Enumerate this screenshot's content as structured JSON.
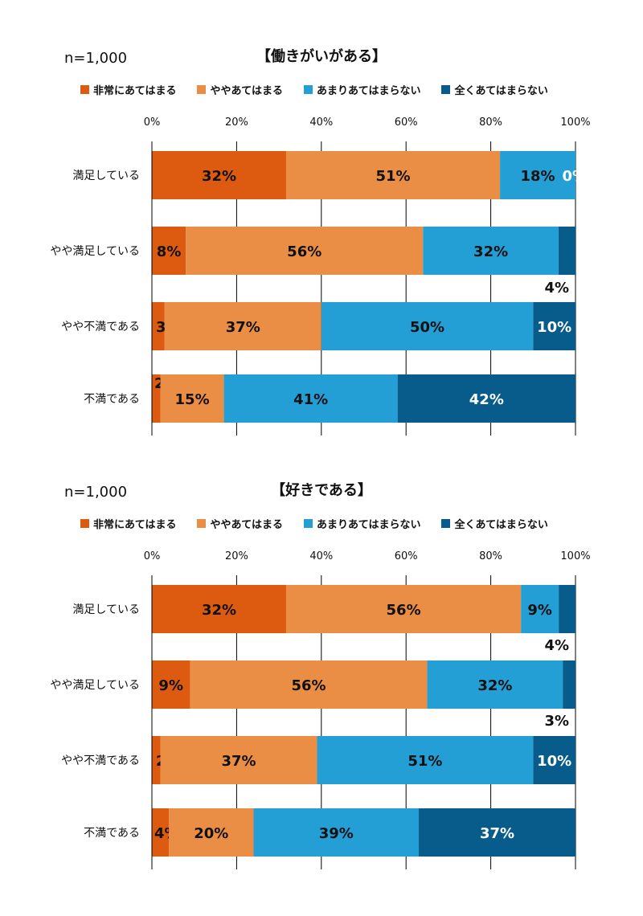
{
  "legend": [
    "非常にあてはまる",
    "ややあてはまる",
    "あまりあてはまらない",
    "全くあてはまらない"
  ],
  "colors": [
    "#dd5a11",
    "#ea8d45",
    "#239fd5",
    "#075c8c"
  ],
  "chart_data": [
    {
      "type": "bar",
      "orientation": "horizontal",
      "stacked": "100%",
      "title": "【働きがいがある】",
      "note": "n=1,000",
      "categories": [
        "満足している",
        "やや満足している",
        "やや不満である",
        "不満である"
      ],
      "series": [
        {
          "name": "非常にあてはまる",
          "values": [
            32,
            8,
            3,
            2
          ]
        },
        {
          "name": "ややあてはまる",
          "values": [
            51,
            56,
            37,
            15
          ]
        },
        {
          "name": "あまりあてはまらない",
          "values": [
            18,
            32,
            50,
            41
          ]
        },
        {
          "name": "全くあてはまらない",
          "values": [
            0,
            4,
            10,
            42
          ]
        }
      ],
      "xticks": [
        "0%",
        "20%",
        "40%",
        "60%",
        "80%",
        "100%"
      ],
      "xlim": [
        0,
        100
      ],
      "legend_position": "top"
    },
    {
      "type": "bar",
      "orientation": "horizontal",
      "stacked": "100%",
      "title": "【好きである】",
      "note": "n=1,000",
      "categories": [
        "満足している",
        "やや満足している",
        "やや不満である",
        "不満である"
      ],
      "series": [
        {
          "name": "非常にあてはまる",
          "values": [
            32,
            9,
            2,
            4
          ]
        },
        {
          "name": "ややあてはまる",
          "values": [
            56,
            56,
            37,
            20
          ]
        },
        {
          "name": "あまりあてはまらない",
          "values": [
            9,
            32,
            51,
            39
          ]
        },
        {
          "name": "全くあてはまらない",
          "values": [
            4,
            3,
            10,
            37
          ]
        }
      ],
      "xticks": [
        "0%",
        "20%",
        "40%",
        "60%",
        "80%",
        "100%"
      ],
      "xlim": [
        0,
        100
      ],
      "legend_position": "top"
    }
  ]
}
